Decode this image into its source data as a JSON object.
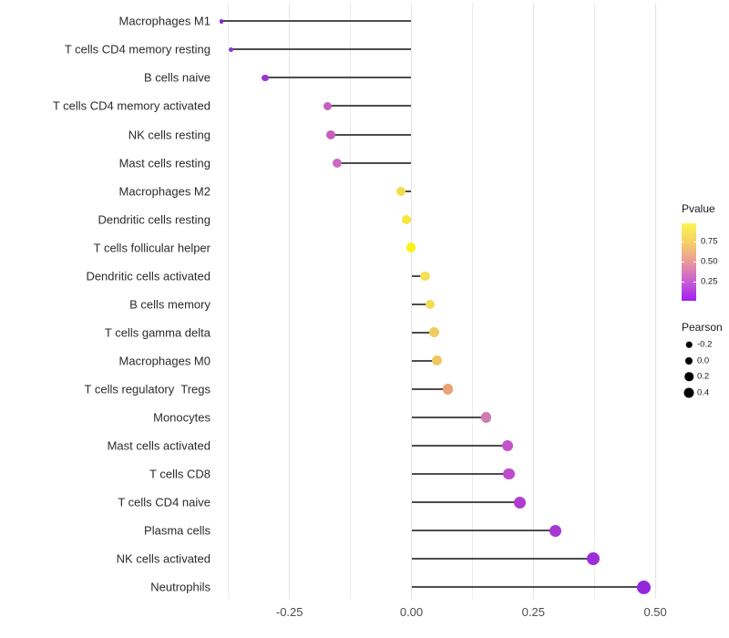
{
  "chart_data": {
    "type": "scatter",
    "subtype": "lollipop",
    "title": "",
    "xlabel": "",
    "ylabel": "",
    "x_axis": {
      "tick_values": [
        -0.25,
        0.0,
        0.25,
        0.5
      ],
      "tick_labels": [
        "-0.25",
        "0.00",
        "0.25",
        "0.50"
      ],
      "minor_gridline_values": [
        -0.375,
        -0.125,
        0.125,
        0.375
      ],
      "range": [
        -0.41,
        0.53
      ],
      "grid": "vertical-only"
    },
    "color_encodes": "Pvalue",
    "size_encodes": "Pearson",
    "points": [
      {
        "label": "Macrophages M1",
        "pearson": -0.39,
        "pvalue": 0.1,
        "color": "#7e2ed9",
        "diameter": 4.5
      },
      {
        "label": "T cells CD4 memory resting",
        "pearson": -0.37,
        "pvalue": 0.12,
        "color": "#8833db",
        "diameter": 5.5
      },
      {
        "label": "B cells naive",
        "pearson": -0.3,
        "pvalue": 0.18,
        "color": "#9b35d2",
        "diameter": 7.5
      },
      {
        "label": "T cells CD4 memory activated",
        "pearson": -0.172,
        "pvalue": 0.38,
        "color": "#c75fc2",
        "diameter": 9.5
      },
      {
        "label": "NK cells resting",
        "pearson": -0.165,
        "pvalue": 0.38,
        "color": "#c75fbe",
        "diameter": 10
      },
      {
        "label": "Mast cells resting",
        "pearson": -0.153,
        "pvalue": 0.4,
        "color": "#cb69bf",
        "diameter": 10
      },
      {
        "label": "Macrophages M2",
        "pearson": -0.021,
        "pvalue": 0.83,
        "color": "#f2de4a",
        "diameter": 10
      },
      {
        "label": "Dendritic cells resting",
        "pearson": -0.011,
        "pvalue": 0.88,
        "color": "#f7e93b",
        "diameter": 10
      },
      {
        "label": "T cells follicular helper",
        "pearson": -0.001,
        "pvalue": 0.97,
        "color": "#fbf316",
        "diameter": 10.5
      },
      {
        "label": "Dendritic cells activated",
        "pearson": 0.028,
        "pvalue": 0.8,
        "color": "#f6e054",
        "diameter": 10.5
      },
      {
        "label": "B cells memory",
        "pearson": 0.038,
        "pvalue": 0.78,
        "color": "#f3dc55",
        "diameter": 10.5
      },
      {
        "label": "T cells gamma delta",
        "pearson": 0.047,
        "pvalue": 0.72,
        "color": "#eecc5f",
        "diameter": 11
      },
      {
        "label": "Macrophages M0",
        "pearson": 0.052,
        "pvalue": 0.7,
        "color": "#efc75f",
        "diameter": 11
      },
      {
        "label": "T cells regulatory  Tregs",
        "pearson": 0.075,
        "pvalue": 0.57,
        "color": "#e9a273",
        "diameter": 11.5
      },
      {
        "label": "Monocytes",
        "pearson": 0.153,
        "pvalue": 0.35,
        "color": "#ce7bb4",
        "diameter": 11.5
      },
      {
        "label": "Mast cells activated",
        "pearson": 0.197,
        "pvalue": 0.25,
        "color": "#c254c9",
        "diameter": 12.5
      },
      {
        "label": "T cells CD8",
        "pearson": 0.2,
        "pvalue": 0.23,
        "color": "#bf4bcd",
        "diameter": 12.5
      },
      {
        "label": "T cells CD4 naive",
        "pearson": 0.222,
        "pvalue": 0.18,
        "color": "#b23bd2",
        "diameter": 13
      },
      {
        "label": "Plasma cells",
        "pearson": 0.295,
        "pvalue": 0.14,
        "color": "#a836d3",
        "diameter": 13
      },
      {
        "label": "NK cells activated",
        "pearson": 0.372,
        "pvalue": 0.08,
        "color": "#9c2fd9",
        "diameter": 14
      },
      {
        "label": "Neutrophils",
        "pearson": 0.477,
        "pvalue": 0.06,
        "color": "#9427dc",
        "diameter": 15
      }
    ]
  },
  "legend": {
    "pvalue": {
      "title": "Pvalue",
      "tick_labels": [
        "0.75",
        "0.50",
        "0.25"
      ],
      "tick_values": [
        0.75,
        0.5,
        0.25
      ],
      "scale_top_value": 0.97,
      "scale_bottom_value": 0.02,
      "gradient_top_to_bottom": [
        "#fbf653",
        "#f6cf66",
        "#e9999c",
        "#c95ed3",
        "#a01ff0"
      ]
    },
    "pearson": {
      "title": "Pearson",
      "dot_color": "#000000",
      "items": [
        {
          "label": "-0.2",
          "diameter": 6.5
        },
        {
          "label": "0.0",
          "diameter": 8
        },
        {
          "label": "0.2",
          "diameter": 9.5
        },
        {
          "label": "0.4",
          "diameter": 11
        }
      ]
    }
  },
  "colors": {
    "segment": "#4d4d4d",
    "grid_major": "#e4e4e4",
    "grid_minor": "#ececec",
    "background": "#ffffff"
  }
}
